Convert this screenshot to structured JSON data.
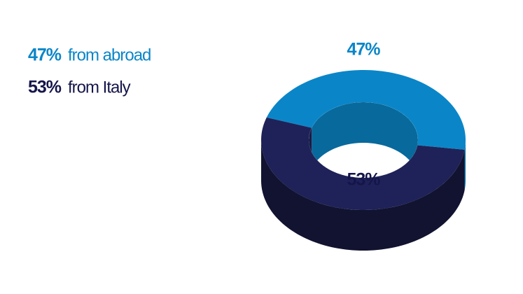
{
  "chart_data": {
    "type": "pie",
    "categories": [
      "from abroad",
      "from Italy"
    ],
    "values": [
      47,
      53
    ],
    "value_labels": [
      "47%",
      "53%"
    ],
    "colors": [
      "#0a86c8",
      "#1f2258"
    ]
  }
}
